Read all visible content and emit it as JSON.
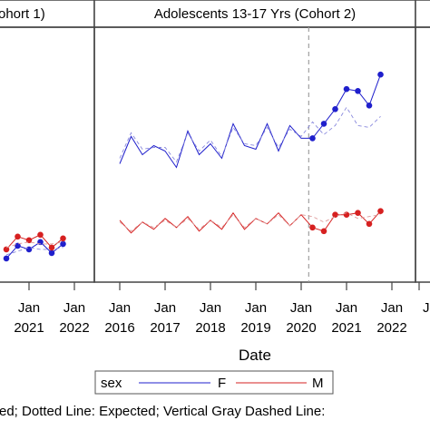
{
  "chart_data": [
    {
      "type": "line",
      "title": "Adolescents 13-17 Yrs (Cohort 2)",
      "title_note": "panel header",
      "xlabel": "Date",
      "x_ticks": [
        {
          "line1": "Jan",
          "line2": "2016",
          "date": "2016-01"
        },
        {
          "line1": "Jan",
          "line2": "2017",
          "date": "2017-01"
        },
        {
          "line1": "Jan",
          "line2": "2018",
          "date": "2018-01"
        },
        {
          "line1": "Jan",
          "line2": "2019",
          "date": "2019-01"
        },
        {
          "line1": "Jan",
          "line2": "2020",
          "date": "2020-01"
        },
        {
          "line1": "Jan",
          "line2": "2021",
          "date": "2021-01"
        },
        {
          "line1": "Jan",
          "line2": "2022",
          "date": "2022-01"
        }
      ],
      "vertical_reference_line": "2020-03",
      "legend": {
        "title": "sex",
        "entries": [
          "F",
          "M"
        ]
      },
      "colors": {
        "F": "#1f1fcc",
        "M": "#d62020",
        "reference": "#a0a0a0",
        "expected": "#777777"
      },
      "series": [
        {
          "name": "F",
          "style": "observed",
          "x": [
            "2016-01",
            "2016-04",
            "2016-07",
            "2016-10",
            "2017-01",
            "2017-04",
            "2017-07",
            "2017-10",
            "2018-01",
            "2018-04",
            "2018-07",
            "2018-10",
            "2019-01",
            "2019-04",
            "2019-07",
            "2019-10",
            "2020-01",
            "2020-04",
            "2020-07",
            "2020-10",
            "2021-01",
            "2021-04",
            "2021-07",
            "2021-10"
          ],
          "y": [
            14.5,
            16,
            15,
            15.5,
            15.2,
            14.3,
            16.3,
            15,
            15.6,
            14.8,
            16.7,
            15.5,
            15.3,
            16.7,
            15.2,
            16.6,
            15.9,
            15.9,
            16.7,
            17.5,
            18.6,
            18.5,
            17.7,
            19.4
          ],
          "markers_from": "2020-04"
        },
        {
          "name": "F",
          "style": "expected",
          "x": [
            "2016-01",
            "2016-04",
            "2016-07",
            "2016-10",
            "2017-01",
            "2017-04",
            "2017-07",
            "2017-10",
            "2018-01",
            "2018-04",
            "2018-07",
            "2018-10",
            "2019-01",
            "2019-04",
            "2019-07",
            "2019-10",
            "2020-01",
            "2020-04",
            "2020-07",
            "2020-10",
            "2021-01",
            "2021-04",
            "2021-07",
            "2021-10"
          ],
          "y": [
            14.8,
            16.2,
            15.3,
            15.4,
            15.4,
            14.6,
            16.2,
            15.2,
            15.8,
            14.9,
            16.5,
            15.6,
            15.5,
            16.5,
            15.4,
            16.4,
            16.0,
            16.8,
            16.1,
            16.6,
            17.6,
            16.6,
            16.5,
            17.1
          ]
        },
        {
          "name": "M",
          "style": "observed",
          "x": [
            "2016-01",
            "2016-04",
            "2016-07",
            "2016-10",
            "2017-01",
            "2017-04",
            "2017-07",
            "2017-10",
            "2018-01",
            "2018-04",
            "2018-07",
            "2018-10",
            "2019-01",
            "2019-04",
            "2019-07",
            "2019-10",
            "2020-01",
            "2020-04",
            "2020-07",
            "2020-10",
            "2021-01",
            "2021-04",
            "2021-07",
            "2021-10"
          ],
          "y": [
            11.4,
            10.7,
            11.3,
            10.9,
            11.5,
            11.0,
            11.6,
            10.8,
            11.4,
            10.9,
            11.8,
            10.9,
            11.5,
            11.2,
            11.8,
            11.1,
            11.7,
            11.0,
            10.8,
            11.7,
            11.7,
            11.8,
            11.2,
            11.9
          ],
          "markers_from": "2020-04"
        },
        {
          "name": "M",
          "style": "expected",
          "x": [
            "2016-01",
            "2016-04",
            "2016-07",
            "2016-10",
            "2017-01",
            "2017-04",
            "2017-07",
            "2017-10",
            "2018-01",
            "2018-04",
            "2018-07",
            "2018-10",
            "2019-01",
            "2019-04",
            "2019-07",
            "2019-10",
            "2020-01",
            "2020-04",
            "2020-07",
            "2020-10",
            "2021-01",
            "2021-04",
            "2021-07",
            "2021-10"
          ],
          "y": [
            11.3,
            10.8,
            11.3,
            11.0,
            11.4,
            11.0,
            11.5,
            10.9,
            11.4,
            11.0,
            11.7,
            11.0,
            11.5,
            11.2,
            11.7,
            11.1,
            11.7,
            11.6,
            11.3,
            11.6,
            11.8,
            11.5,
            11.6,
            11.7
          ]
        }
      ],
      "ylim": [
        8,
        22
      ],
      "grid": false
    },
    {
      "type": "line",
      "title": "ohort 1)",
      "title_note": "left panel header (clipped)",
      "x_ticks": [
        {
          "line1": "Jan",
          "line2": "2021",
          "date": "2021-01"
        },
        {
          "line1": "Jan",
          "line2": "2022",
          "date": "2022-01"
        }
      ],
      "series": [
        {
          "name": "F",
          "style": "observed",
          "x": [
            "2020-07",
            "2020-10",
            "2021-01",
            "2021-04",
            "2021-07",
            "2021-10"
          ],
          "y": [
            9.3,
            10.0,
            9.8,
            10.2,
            9.6,
            10.1
          ],
          "markers": true
        },
        {
          "name": "F",
          "style": "expected",
          "x": [
            "2020-07",
            "2020-10",
            "2021-01",
            "2021-04",
            "2021-07",
            "2021-10"
          ],
          "y": [
            9.5,
            9.7,
            9.9,
            9.8,
            9.8,
            9.9
          ]
        },
        {
          "name": "M",
          "style": "observed",
          "x": [
            "2020-07",
            "2020-10",
            "2021-01",
            "2021-04",
            "2021-07",
            "2021-10"
          ],
          "y": [
            9.8,
            10.5,
            10.3,
            10.6,
            9.9,
            10.4
          ],
          "markers": true
        },
        {
          "name": "M",
          "style": "expected",
          "x": [
            "2020-07",
            "2020-10",
            "2021-01",
            "2021-04",
            "2021-07",
            "2021-10"
          ],
          "y": [
            9.9,
            10.1,
            10.2,
            10.1,
            10.1,
            10.2
          ]
        }
      ],
      "ylim": [
        8,
        22
      ]
    }
  ],
  "footnote": "ed; Dotted Line: Expected; Vertical Gray Dashed Line: ",
  "right_clipped_tick": "J"
}
